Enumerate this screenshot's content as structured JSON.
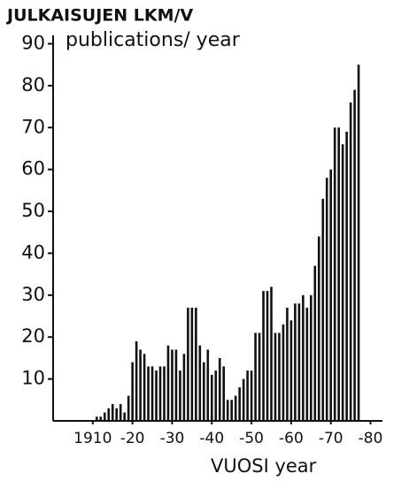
{
  "chart_data": {
    "type": "bar",
    "title": "JULKAISUJEN LKM/V",
    "y_label": "publications/ year",
    "x_label": "VUOSI  year",
    "color": "#111111",
    "x": [
      1911,
      1912,
      1913,
      1914,
      1915,
      1916,
      1917,
      1918,
      1919,
      1920,
      1921,
      1922,
      1923,
      1924,
      1925,
      1926,
      1927,
      1928,
      1929,
      1930,
      1931,
      1932,
      1933,
      1934,
      1935,
      1936,
      1937,
      1938,
      1939,
      1940,
      1941,
      1942,
      1943,
      1944,
      1945,
      1946,
      1947,
      1948,
      1949,
      1950,
      1951,
      1952,
      1953,
      1954,
      1955,
      1956,
      1957,
      1958,
      1959,
      1960,
      1961,
      1962,
      1963,
      1964,
      1965,
      1966,
      1967,
      1968,
      1969,
      1970,
      1971,
      1972,
      1973,
      1974,
      1975,
      1976,
      1977
    ],
    "values": [
      1,
      1,
      2,
      3,
      4,
      3,
      4,
      2,
      6,
      14,
      19,
      17,
      16,
      13,
      13,
      12,
      13,
      13,
      18,
      17,
      17,
      12,
      16,
      27,
      27,
      27,
      18,
      14,
      17,
      11,
      12,
      15,
      13,
      5,
      5,
      6,
      8,
      10,
      12,
      12,
      21,
      21,
      31,
      31,
      32,
      21,
      21,
      23,
      27,
      24,
      28,
      28,
      30,
      27,
      30,
      37,
      44,
      53,
      58,
      60,
      70,
      70,
      66,
      69,
      76,
      79,
      85
    ],
    "xlim": [
      1900,
      1983
    ],
    "ylim": [
      0,
      92
    ],
    "xticks": [
      1910,
      {
        "value": 1920,
        "label": "-20"
      },
      {
        "value": 1930,
        "label": "-30"
      },
      {
        "value": 1940,
        "label": "-40"
      },
      {
        "value": 1950,
        "label": "-50"
      },
      {
        "value": 1960,
        "label": "-60"
      },
      {
        "value": 1970,
        "label": "-70"
      },
      {
        "value": 1980,
        "label": "-80"
      }
    ],
    "yticks": [
      10,
      20,
      30,
      40,
      50,
      60,
      70,
      80,
      90
    ]
  }
}
